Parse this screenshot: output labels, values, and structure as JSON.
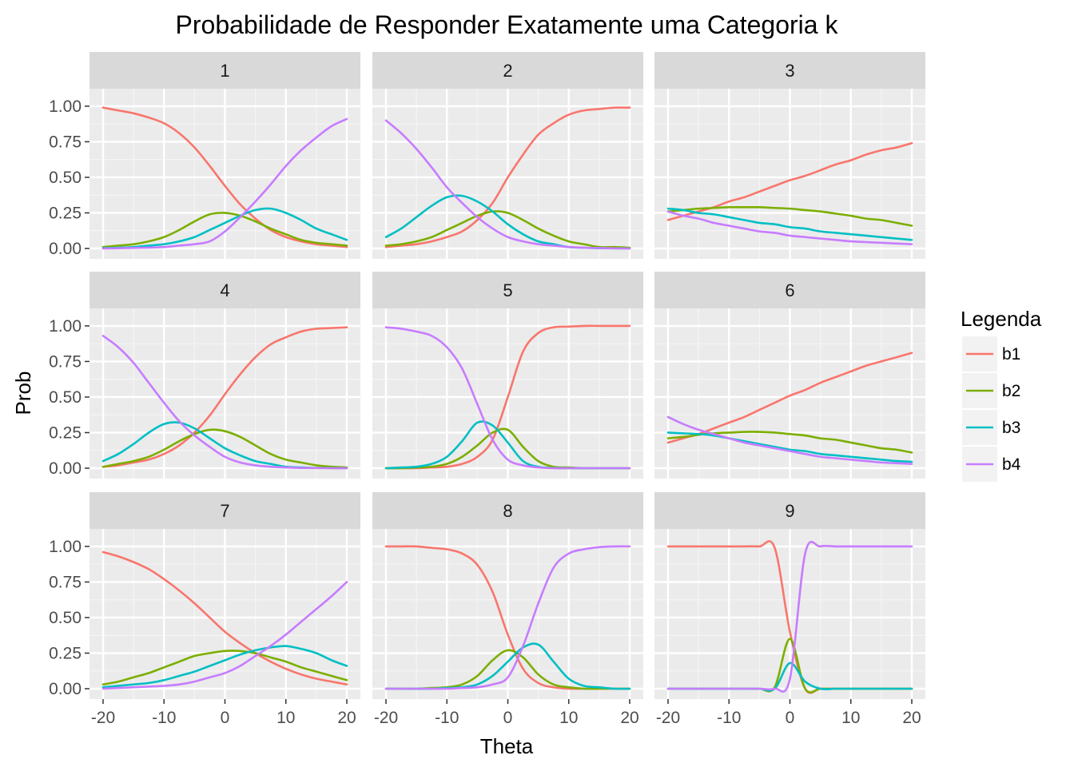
{
  "chart_data": {
    "type": "line",
    "title": "Probabilidade de Responder Exatamente uma Categoria k",
    "xlabel": "Theta",
    "ylabel": "Prob",
    "xlim": [
      -20,
      20
    ],
    "ylim": [
      0,
      1.05
    ],
    "x_ticks": [
      -20,
      -10,
      0,
      10,
      20
    ],
    "x_tick_labels": [
      "-20",
      "-10",
      "0",
      "10",
      "20"
    ],
    "y_ticks": [
      0,
      0.25,
      0.5,
      0.75,
      1.0
    ],
    "y_tick_labels": [
      "0.00",
      "0.25",
      "0.50",
      "0.75",
      "1.00"
    ],
    "grid": true,
    "legend": {
      "title": "Legenda",
      "position": "right",
      "entries": [
        {
          "name": "b1",
          "color": "#F8766D"
        },
        {
          "name": "b2",
          "color": "#7CAE00"
        },
        {
          "name": "b3",
          "color": "#00BFC4"
        },
        {
          "name": "b4",
          "color": "#C77CFF"
        }
      ]
    },
    "x": [
      -20,
      -17.5,
      -15,
      -12.5,
      -10,
      -7.5,
      -5,
      -2.5,
      0,
      2.5,
      5,
      7.5,
      10,
      12.5,
      15,
      17.5,
      20
    ],
    "panels": [
      {
        "label": "1",
        "series": [
          {
            "name": "b1",
            "values": [
              0.99,
              0.97,
              0.95,
              0.92,
              0.88,
              0.81,
              0.71,
              0.58,
              0.44,
              0.31,
              0.21,
              0.13,
              0.08,
              0.05,
              0.03,
              0.02,
              0.01
            ]
          },
          {
            "name": "b2",
            "values": [
              0.01,
              0.02,
              0.03,
              0.05,
              0.08,
              0.13,
              0.19,
              0.24,
              0.25,
              0.23,
              0.19,
              0.14,
              0.1,
              0.06,
              0.04,
              0.03,
              0.02
            ]
          },
          {
            "name": "b3",
            "values": [
              0.003,
              0.005,
              0.01,
              0.02,
              0.03,
              0.05,
              0.08,
              0.13,
              0.18,
              0.23,
              0.27,
              0.28,
              0.25,
              0.2,
              0.14,
              0.1,
              0.06
            ]
          },
          {
            "name": "b4",
            "values": [
              0.0,
              0.002,
              0.004,
              0.006,
              0.01,
              0.02,
              0.03,
              0.05,
              0.12,
              0.22,
              0.33,
              0.45,
              0.58,
              0.69,
              0.78,
              0.86,
              0.91
            ]
          }
        ]
      },
      {
        "label": "2",
        "series": [
          {
            "name": "b1",
            "values": [
              0.01,
              0.02,
              0.03,
              0.05,
              0.08,
              0.12,
              0.2,
              0.32,
              0.5,
              0.66,
              0.8,
              0.88,
              0.94,
              0.97,
              0.98,
              0.99,
              0.99
            ]
          },
          {
            "name": "b2",
            "values": [
              0.02,
              0.03,
              0.05,
              0.08,
              0.13,
              0.18,
              0.23,
              0.26,
              0.25,
              0.2,
              0.14,
              0.09,
              0.05,
              0.03,
              0.01,
              0.01,
              0.005
            ]
          },
          {
            "name": "b3",
            "values": [
              0.08,
              0.14,
              0.22,
              0.3,
              0.36,
              0.37,
              0.33,
              0.26,
              0.17,
              0.1,
              0.05,
              0.03,
              0.01,
              0.005,
              0.002,
              0.001,
              0.0
            ]
          },
          {
            "name": "b4",
            "values": [
              0.9,
              0.81,
              0.7,
              0.57,
              0.43,
              0.32,
              0.22,
              0.14,
              0.08,
              0.05,
              0.03,
              0.02,
              0.01,
              0.005,
              0.003,
              0.001,
              0.0
            ]
          }
        ]
      },
      {
        "label": "3",
        "series": [
          {
            "name": "b1",
            "values": [
              0.2,
              0.23,
              0.26,
              0.29,
              0.33,
              0.36,
              0.4,
              0.44,
              0.48,
              0.51,
              0.55,
              0.59,
              0.62,
              0.66,
              0.69,
              0.71,
              0.74
            ]
          },
          {
            "name": "b2",
            "values": [
              0.26,
              0.27,
              0.28,
              0.285,
              0.29,
              0.29,
              0.29,
              0.285,
              0.28,
              0.27,
              0.26,
              0.245,
              0.23,
              0.21,
              0.2,
              0.18,
              0.16
            ]
          },
          {
            "name": "b3",
            "values": [
              0.28,
              0.27,
              0.25,
              0.24,
              0.22,
              0.2,
              0.18,
              0.17,
              0.15,
              0.14,
              0.12,
              0.11,
              0.1,
              0.09,
              0.08,
              0.07,
              0.06
            ]
          },
          {
            "name": "b4",
            "values": [
              0.26,
              0.23,
              0.21,
              0.18,
              0.16,
              0.14,
              0.12,
              0.11,
              0.09,
              0.08,
              0.07,
              0.06,
              0.05,
              0.045,
              0.04,
              0.035,
              0.03
            ]
          }
        ]
      },
      {
        "label": "4",
        "series": [
          {
            "name": "b1",
            "values": [
              0.01,
              0.02,
              0.04,
              0.06,
              0.1,
              0.16,
              0.25,
              0.37,
              0.52,
              0.66,
              0.78,
              0.87,
              0.92,
              0.96,
              0.98,
              0.985,
              0.99
            ]
          },
          {
            "name": "b2",
            "values": [
              0.01,
              0.03,
              0.05,
              0.08,
              0.13,
              0.19,
              0.24,
              0.27,
              0.26,
              0.22,
              0.16,
              0.1,
              0.06,
              0.04,
              0.02,
              0.01,
              0.005
            ]
          },
          {
            "name": "b3",
            "values": [
              0.05,
              0.1,
              0.17,
              0.25,
              0.31,
              0.32,
              0.28,
              0.21,
              0.14,
              0.09,
              0.05,
              0.03,
              0.01,
              0.005,
              0.002,
              0.001,
              0.0
            ]
          },
          {
            "name": "b4",
            "values": [
              0.93,
              0.85,
              0.74,
              0.6,
              0.46,
              0.33,
              0.23,
              0.15,
              0.08,
              0.04,
              0.02,
              0.01,
              0.005,
              0.002,
              0.001,
              0.0,
              0.0
            ]
          }
        ]
      },
      {
        "label": "5",
        "series": [
          {
            "name": "b1",
            "values": [
              0.0,
              0.0,
              0.0,
              0.005,
              0.01,
              0.03,
              0.08,
              0.2,
              0.5,
              0.82,
              0.95,
              0.99,
              0.995,
              1.0,
              1.0,
              1.0,
              1.0
            ]
          },
          {
            "name": "b2",
            "values": [
              0.0,
              0.0,
              0.005,
              0.01,
              0.03,
              0.08,
              0.16,
              0.25,
              0.27,
              0.15,
              0.05,
              0.01,
              0.005,
              0.0,
              0.0,
              0.0,
              0.0
            ]
          },
          {
            "name": "b3",
            "values": [
              0.0,
              0.005,
              0.01,
              0.03,
              0.08,
              0.19,
              0.32,
              0.3,
              0.18,
              0.05,
              0.01,
              0.002,
              0.0,
              0.0,
              0.0,
              0.0,
              0.0
            ]
          },
          {
            "name": "b4",
            "values": [
              0.99,
              0.98,
              0.96,
              0.93,
              0.85,
              0.7,
              0.45,
              0.2,
              0.06,
              0.02,
              0.005,
              0.0,
              0.0,
              0.0,
              0.0,
              0.0,
              0.0
            ]
          }
        ]
      },
      {
        "label": "6",
        "series": [
          {
            "name": "b1",
            "values": [
              0.18,
              0.21,
              0.24,
              0.28,
              0.32,
              0.36,
              0.41,
              0.46,
              0.51,
              0.55,
              0.6,
              0.64,
              0.68,
              0.72,
              0.75,
              0.78,
              0.81
            ]
          },
          {
            "name": "b2",
            "values": [
              0.21,
              0.22,
              0.235,
              0.245,
              0.25,
              0.255,
              0.255,
              0.25,
              0.24,
              0.23,
              0.21,
              0.2,
              0.18,
              0.16,
              0.14,
              0.13,
              0.11
            ]
          },
          {
            "name": "b3",
            "values": [
              0.25,
              0.245,
              0.24,
              0.23,
              0.21,
              0.19,
              0.17,
              0.15,
              0.13,
              0.12,
              0.1,
              0.09,
              0.08,
              0.07,
              0.06,
              0.05,
              0.045
            ]
          },
          {
            "name": "b4",
            "values": [
              0.36,
              0.31,
              0.27,
              0.24,
              0.21,
              0.18,
              0.16,
              0.14,
              0.12,
              0.1,
              0.08,
              0.07,
              0.06,
              0.05,
              0.04,
              0.035,
              0.03
            ]
          }
        ]
      },
      {
        "label": "7",
        "series": [
          {
            "name": "b1",
            "values": [
              0.96,
              0.93,
              0.89,
              0.84,
              0.77,
              0.69,
              0.6,
              0.5,
              0.4,
              0.32,
              0.25,
              0.19,
              0.14,
              0.1,
              0.07,
              0.05,
              0.03
            ]
          },
          {
            "name": "b2",
            "values": [
              0.03,
              0.05,
              0.08,
              0.11,
              0.15,
              0.19,
              0.23,
              0.25,
              0.265,
              0.265,
              0.25,
              0.22,
              0.19,
              0.15,
              0.12,
              0.09,
              0.06
            ]
          },
          {
            "name": "b3",
            "values": [
              0.01,
              0.02,
              0.03,
              0.04,
              0.06,
              0.09,
              0.12,
              0.16,
              0.2,
              0.24,
              0.27,
              0.29,
              0.3,
              0.28,
              0.25,
              0.2,
              0.16
            ]
          },
          {
            "name": "b4",
            "values": [
              0.0,
              0.005,
              0.01,
              0.015,
              0.02,
              0.03,
              0.05,
              0.08,
              0.11,
              0.16,
              0.23,
              0.3,
              0.38,
              0.47,
              0.56,
              0.65,
              0.75
            ]
          }
        ]
      },
      {
        "label": "8",
        "series": [
          {
            "name": "b1",
            "values": [
              1.0,
              1.0,
              1.0,
              0.99,
              0.98,
              0.95,
              0.87,
              0.68,
              0.38,
              0.14,
              0.04,
              0.01,
              0.0,
              0.0,
              0.0,
              0.0,
              0.0
            ]
          },
          {
            "name": "b2",
            "values": [
              0.0,
              0.0,
              0.0,
              0.005,
              0.01,
              0.03,
              0.09,
              0.2,
              0.27,
              0.22,
              0.1,
              0.03,
              0.01,
              0.0,
              0.0,
              0.0,
              0.0
            ]
          },
          {
            "name": "b3",
            "values": [
              0.0,
              0.0,
              0.0,
              0.0,
              0.005,
              0.01,
              0.03,
              0.09,
              0.19,
              0.29,
              0.31,
              0.19,
              0.07,
              0.02,
              0.01,
              0.0,
              0.0
            ]
          },
          {
            "name": "b4",
            "values": [
              0.0,
              0.0,
              0.0,
              0.0,
              0.0,
              0.005,
              0.01,
              0.03,
              0.08,
              0.3,
              0.6,
              0.85,
              0.95,
              0.98,
              0.995,
              1.0,
              1.0
            ]
          }
        ]
      },
      {
        "label": "9",
        "series": [
          {
            "name": "b1",
            "values": [
              1.0,
              1.0,
              1.0,
              1.0,
              1.0,
              1.0,
              1.0,
              0.99,
              0.4,
              0.0,
              0.0,
              0.0,
              0.0,
              0.0,
              0.0,
              0.0,
              0.0
            ]
          },
          {
            "name": "b2",
            "values": [
              0.0,
              0.0,
              0.0,
              0.0,
              0.0,
              0.0,
              0.0,
              0.01,
              0.35,
              0.0,
              0.0,
              0.0,
              0.0,
              0.0,
              0.0,
              0.0,
              0.0
            ]
          },
          {
            "name": "b3",
            "values": [
              0.0,
              0.0,
              0.0,
              0.0,
              0.0,
              0.0,
              0.0,
              0.0,
              0.18,
              0.05,
              0.0,
              0.0,
              0.0,
              0.0,
              0.0,
              0.0,
              0.0
            ]
          },
          {
            "name": "b4",
            "values": [
              0.0,
              0.0,
              0.0,
              0.0,
              0.0,
              0.0,
              0.0,
              0.0,
              0.07,
              0.95,
              1.0,
              1.0,
              1.0,
              1.0,
              1.0,
              1.0,
              1.0
            ]
          }
        ]
      }
    ]
  }
}
